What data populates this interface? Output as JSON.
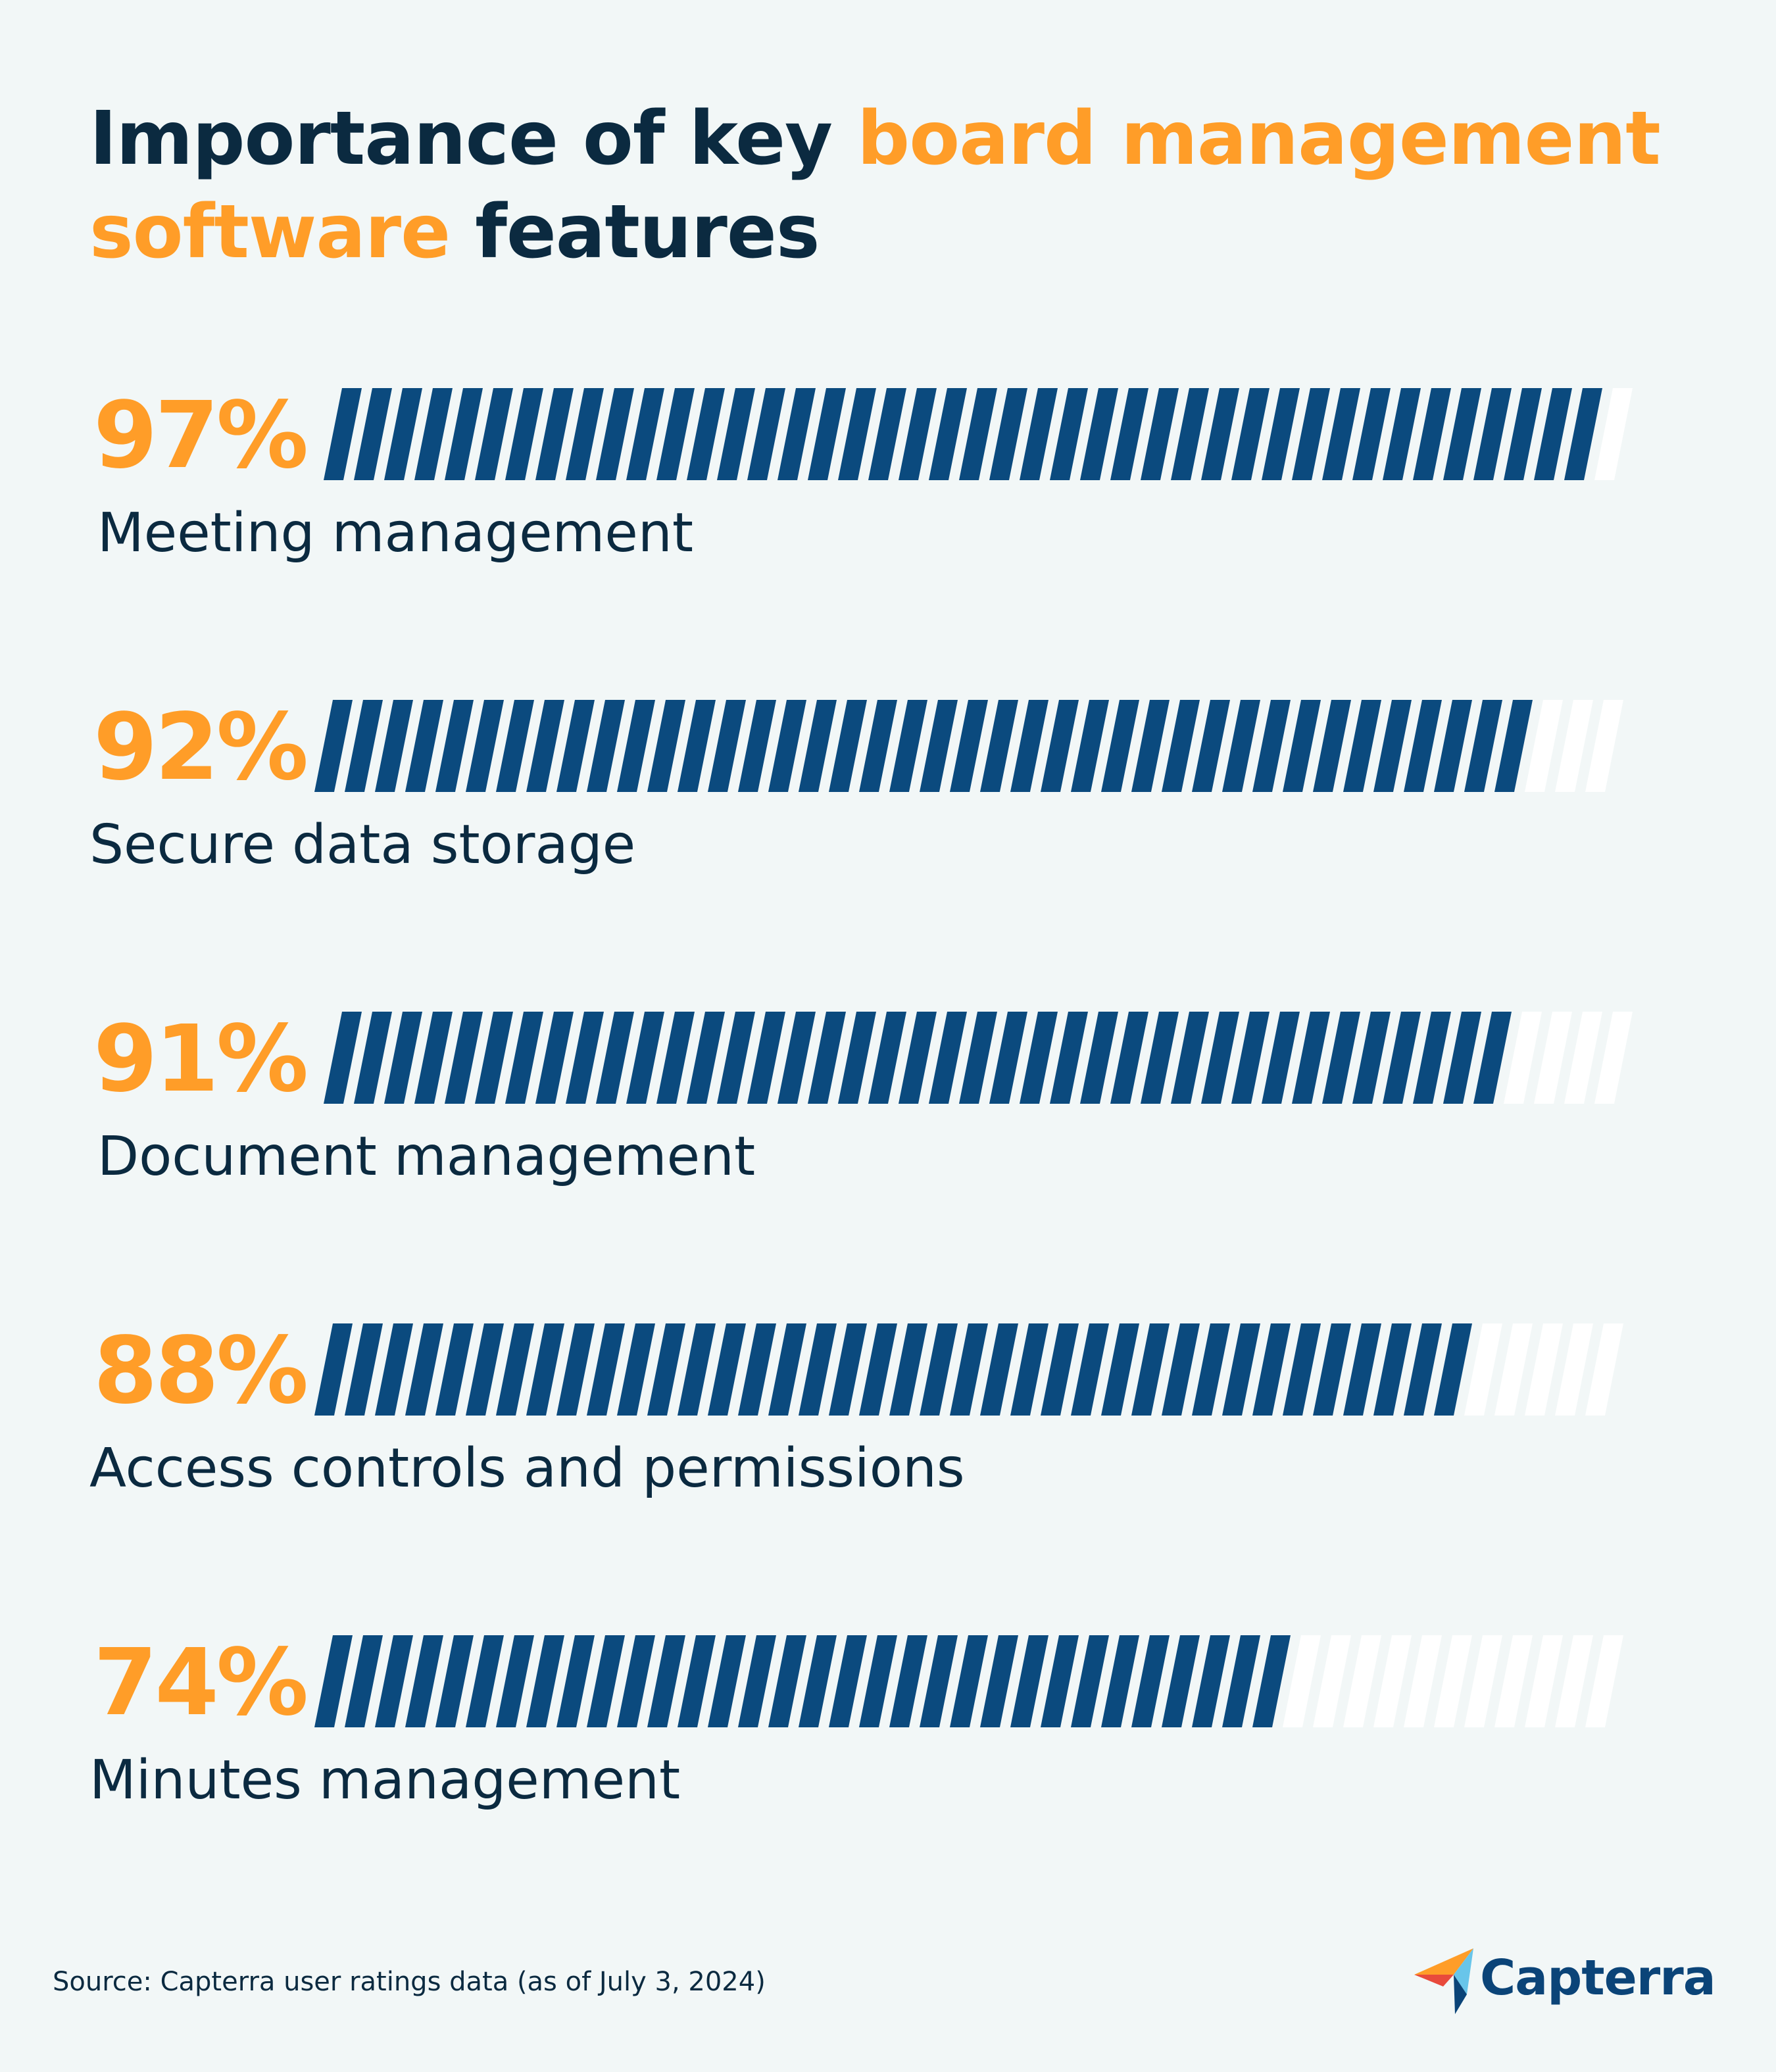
{
  "title": {
    "part1": "Importance of key ",
    "highlight1": "board management",
    "highlight2": "software",
    "part3": " features"
  },
  "colors": {
    "background": "#f2f7f7",
    "bar_fill": "#0b4a7e",
    "bar_empty": "#ffffff",
    "percent": "#ff9d28",
    "text": "#0b2a40"
  },
  "chart_data": {
    "type": "bar",
    "categories": [
      "Meeting management",
      "Secure data storage",
      "Document management",
      "Access controls and permissions",
      "Minutes management"
    ],
    "values": [
      97,
      92,
      91,
      88,
      74
    ],
    "value_labels": [
      "97%",
      "92%",
      "91%",
      "88%",
      "74%"
    ],
    "ylim": [
      0,
      100
    ],
    "orientation": "horizontal",
    "grid": false,
    "legend": "none"
  },
  "source": "Source: Capterra user ratings data (as of July 3, 2024)",
  "logo": {
    "text": "Capterra",
    "icon": "capterra-arrow-icon"
  }
}
